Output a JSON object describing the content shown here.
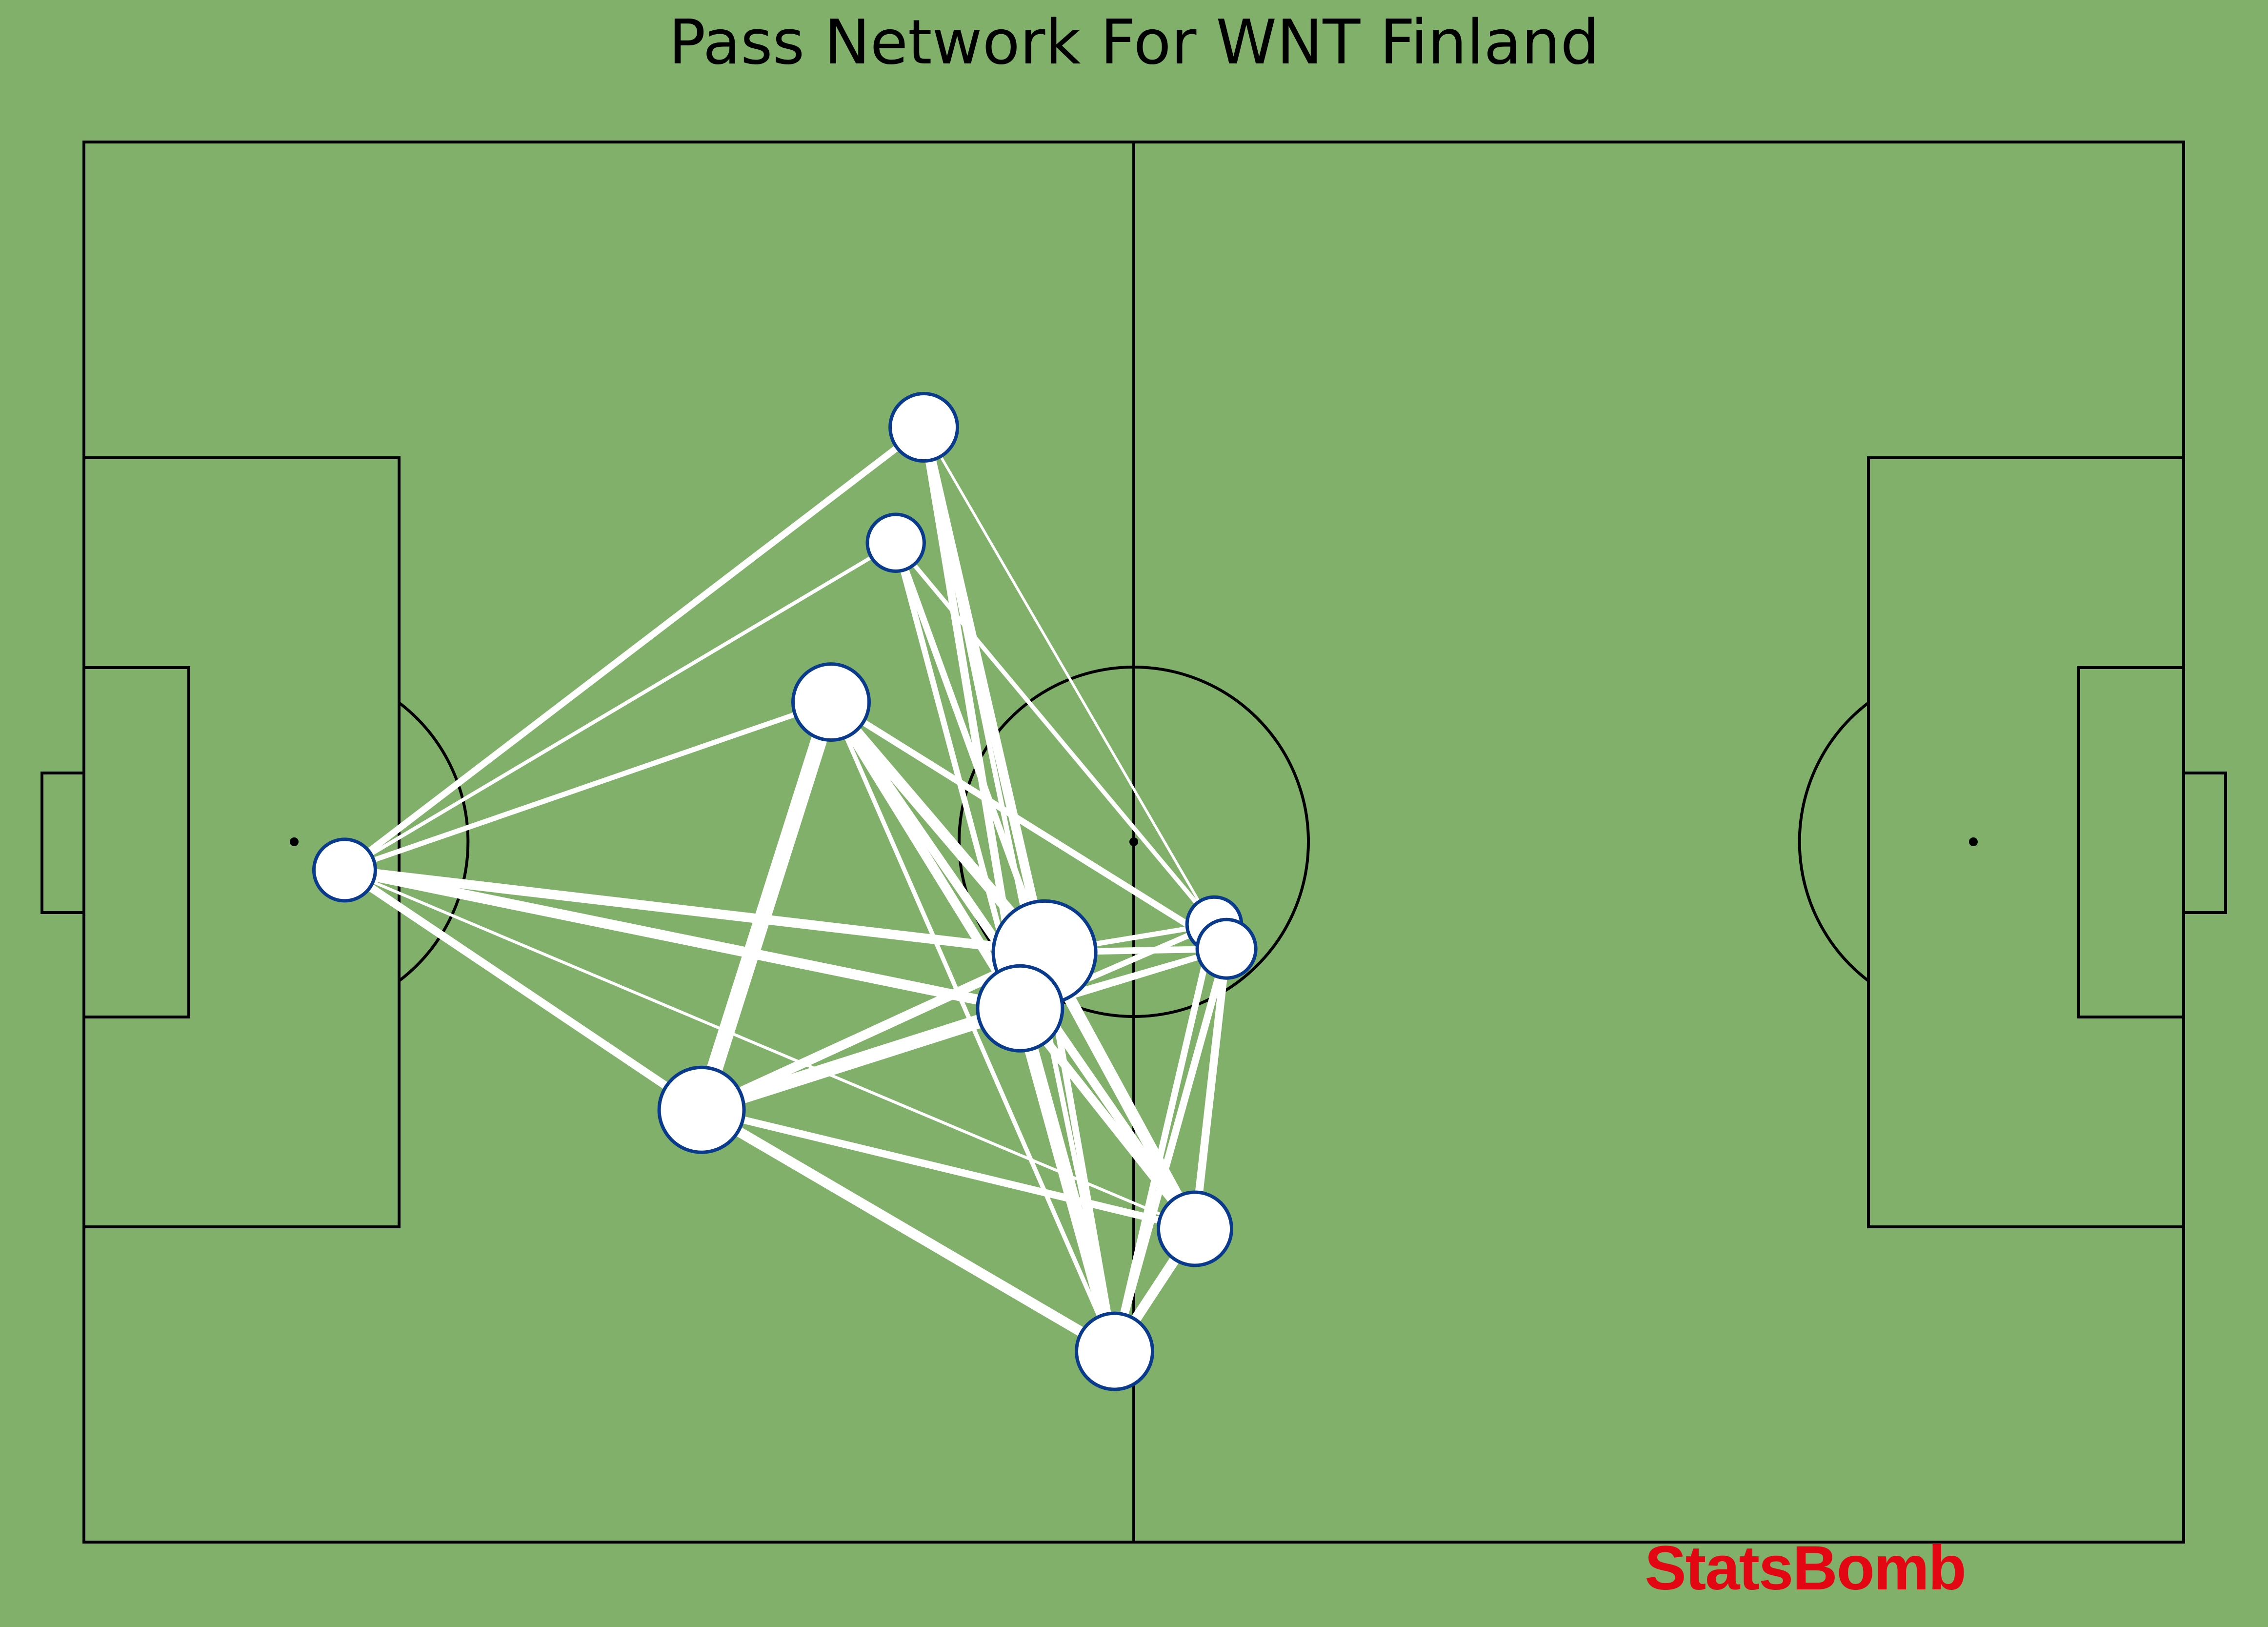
{
  "chart_data": {
    "type": "pass-network",
    "title": "Pass Network For WNT Finland",
    "pitch": {
      "length": 120,
      "width": 80,
      "line_color": "#000000",
      "grass_color": "#80b06a"
    },
    "node_style": {
      "fill": "#ffffff",
      "edge": "#0a3a8c"
    },
    "edge_color": "#ffffff",
    "nodes": [
      {
        "id": "p1",
        "x": 14.9,
        "y": 41.6,
        "size": 0.3
      },
      {
        "id": "p2",
        "x": 48.0,
        "y": 16.3,
        "size": 0.4
      },
      {
        "id": "p3",
        "x": 46.4,
        "y": 22.9,
        "size": 0.22
      },
      {
        "id": "p4",
        "x": 42.7,
        "y": 32.0,
        "size": 0.55
      },
      {
        "id": "p5",
        "x": 54.9,
        "y": 46.3,
        "size": 1.0
      },
      {
        "id": "p6",
        "x": 53.5,
        "y": 49.5,
        "size": 0.7
      },
      {
        "id": "p7",
        "x": 35.3,
        "y": 55.3,
        "size": 0.7
      },
      {
        "id": "p8",
        "x": 63.5,
        "y": 62.1,
        "size": 0.5
      },
      {
        "id": "p9",
        "x": 58.9,
        "y": 69.1,
        "size": 0.55
      },
      {
        "id": "p10",
        "x": 64.6,
        "y": 44.7,
        "size": 0.18
      },
      {
        "id": "p11",
        "x": 65.3,
        "y": 46.1,
        "size": 0.25
      }
    ],
    "edges": [
      {
        "from": "p1",
        "to": "p2",
        "weight": 0.35
      },
      {
        "from": "p1",
        "to": "p3",
        "weight": 0.15
      },
      {
        "from": "p1",
        "to": "p4",
        "weight": 0.25
      },
      {
        "from": "p1",
        "to": "p5",
        "weight": 0.55
      },
      {
        "from": "p1",
        "to": "p6",
        "weight": 0.6
      },
      {
        "from": "p1",
        "to": "p7",
        "weight": 0.45
      },
      {
        "from": "p1",
        "to": "p8",
        "weight": 0.1
      },
      {
        "from": "p2",
        "to": "p5",
        "weight": 0.55
      },
      {
        "from": "p2",
        "to": "p6",
        "weight": 0.45
      },
      {
        "from": "p2",
        "to": "p9",
        "weight": 0.25
      },
      {
        "from": "p2",
        "to": "p11",
        "weight": 0.08
      },
      {
        "from": "p3",
        "to": "p5",
        "weight": 0.35
      },
      {
        "from": "p3",
        "to": "p6",
        "weight": 0.3
      },
      {
        "from": "p3",
        "to": "p10",
        "weight": 0.2
      },
      {
        "from": "p4",
        "to": "p7",
        "weight": 1.0
      },
      {
        "from": "p4",
        "to": "p5",
        "weight": 0.65
      },
      {
        "from": "p4",
        "to": "p6",
        "weight": 0.55
      },
      {
        "from": "p4",
        "to": "p8",
        "weight": 0.5
      },
      {
        "from": "p4",
        "to": "p9",
        "weight": 0.2
      },
      {
        "from": "p4",
        "to": "p11",
        "weight": 0.35
      },
      {
        "from": "p5",
        "to": "p6",
        "weight": 0.7
      },
      {
        "from": "p5",
        "to": "p7",
        "weight": 0.55
      },
      {
        "from": "p5",
        "to": "p8",
        "weight": 0.7
      },
      {
        "from": "p5",
        "to": "p9",
        "weight": 0.35
      },
      {
        "from": "p5",
        "to": "p10",
        "weight": 0.25
      },
      {
        "from": "p5",
        "to": "p11",
        "weight": 0.35
      },
      {
        "from": "p6",
        "to": "p7",
        "weight": 0.85
      },
      {
        "from": "p6",
        "to": "p8",
        "weight": 0.5
      },
      {
        "from": "p6",
        "to": "p9",
        "weight": 0.85
      },
      {
        "from": "p6",
        "to": "p10",
        "weight": 0.3
      },
      {
        "from": "p6",
        "to": "p11",
        "weight": 0.3
      },
      {
        "from": "p7",
        "to": "p8",
        "weight": 0.4
      },
      {
        "from": "p7",
        "to": "p9",
        "weight": 0.6
      },
      {
        "from": "p7",
        "to": "p11",
        "weight": 0.25
      },
      {
        "from": "p8",
        "to": "p9",
        "weight": 0.6
      },
      {
        "from": "p8",
        "to": "p11",
        "weight": 0.45
      },
      {
        "from": "p9",
        "to": "p10",
        "weight": 0.35
      },
      {
        "from": "p9",
        "to": "p11",
        "weight": 0.4
      }
    ]
  },
  "branding": {
    "watermark": "StatsBomb",
    "watermark_color": "#e30613"
  }
}
